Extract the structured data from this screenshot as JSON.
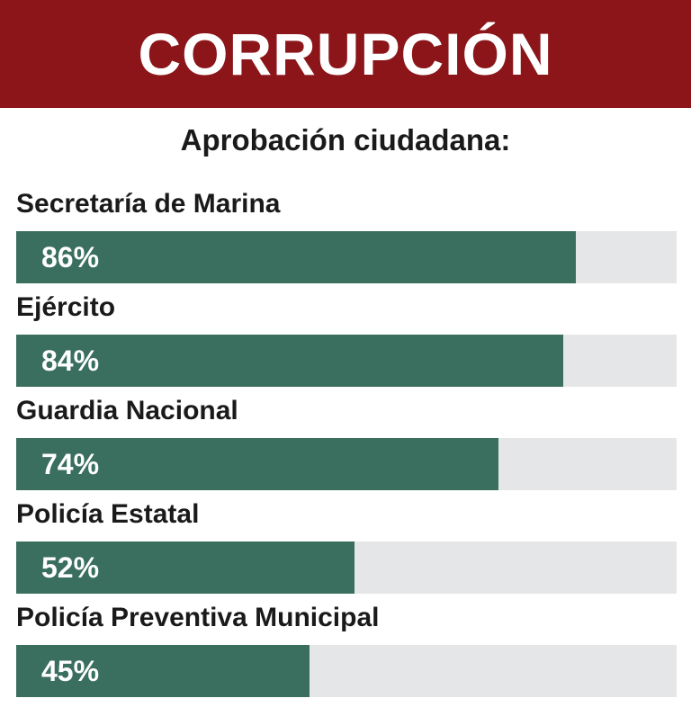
{
  "header": {
    "title": "CORRUPCIÓN"
  },
  "colors": {
    "banner": "#8b1519",
    "bar": "#3a6e5e",
    "track": "#e5e6e8"
  },
  "chart_data": {
    "type": "bar",
    "orientation": "horizontal",
    "title": "CORRUPCIÓN",
    "subtitle": "Aprobación ciudadana:",
    "categories": [
      "Secretaría de Marina",
      "Ejército",
      "Guardia Nacional",
      "Policía Estatal",
      "Policía Preventiva Municipal"
    ],
    "values": [
      86,
      84,
      74,
      52,
      45
    ],
    "value_labels": [
      "86%",
      "84%",
      "74%",
      "52%",
      "45%"
    ],
    "xlim": [
      0,
      100
    ],
    "grid": false
  }
}
